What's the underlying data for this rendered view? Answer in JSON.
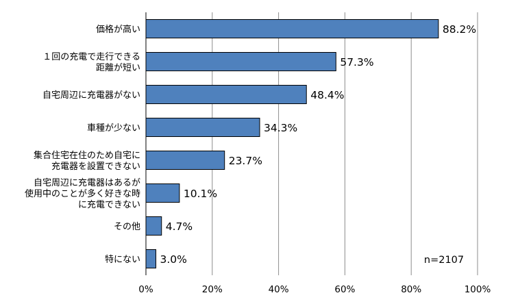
{
  "chart_data": {
    "type": "bar",
    "orientation": "horizontal",
    "categories": [
      [
        "価格が高い"
      ],
      [
        "１回の充電で走行できる",
        "距離が短い"
      ],
      [
        "自宅周辺に充電器がない"
      ],
      [
        "車種が少ない"
      ],
      [
        "集合住宅在住のため自宅に",
        "充電器を設置できない"
      ],
      [
        "自宅周辺に充電器はあるが",
        "使用中のことが多く好きな時",
        "に充電できない"
      ],
      [
        "その他"
      ],
      [
        "特にない"
      ]
    ],
    "values": [
      88.2,
      57.3,
      48.4,
      34.3,
      23.7,
      10.1,
      4.7,
      3.0
    ],
    "value_labels": [
      "88.2%",
      "57.3%",
      "48.4%",
      "34.3%",
      "23.7%",
      "10.1%",
      "4.7%",
      "3.0%"
    ],
    "xlim": [
      0,
      100
    ],
    "xticks": [
      0,
      20,
      40,
      60,
      80,
      100
    ],
    "xtick_labels": [
      "0%",
      "20%",
      "40%",
      "60%",
      "80%",
      "100%"
    ],
    "grid": true,
    "bar_color": "#4F81BD",
    "bar_edge_color": "#000000",
    "annotation": "n=2107"
  }
}
